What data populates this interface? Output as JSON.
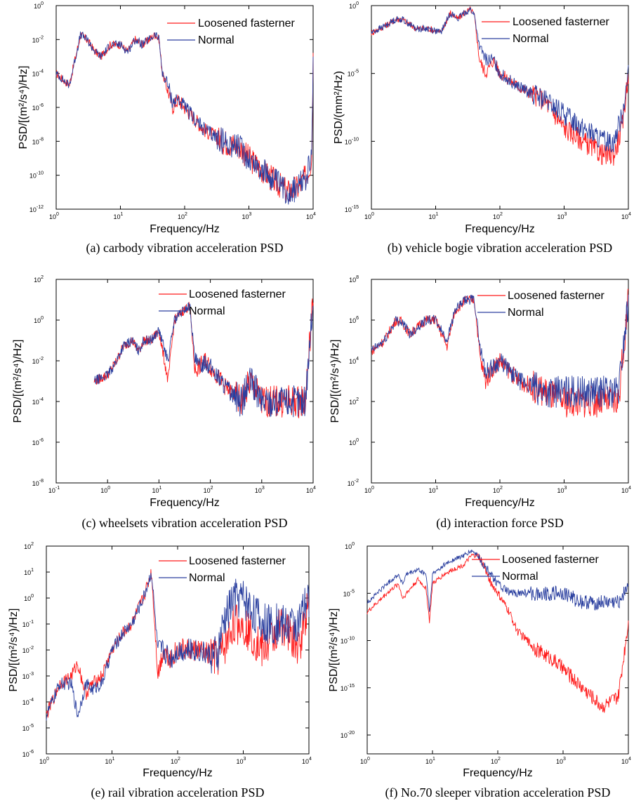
{
  "colors": {
    "loosened": "#ff1a1a",
    "normal": "#2a3f9f",
    "axis": "#000000"
  },
  "chart_data": [
    {
      "type": "line",
      "panel": "a",
      "log_x": true,
      "log_y": true,
      "caption": "(a) carbody vibration acceleration PSD",
      "xlabel": "Frequency/Hz",
      "ylabel": "PSD/[(m²/s⁴)/Hz]",
      "xlim": [
        1,
        10000
      ],
      "ylim": [
        1e-12,
        1
      ],
      "xticks": [
        {
          "v": 1,
          "m": "0"
        },
        {
          "v": 10,
          "m": "1"
        },
        {
          "v": 100,
          "m": "2"
        },
        {
          "v": 1000,
          "m": "3"
        },
        {
          "v": 10000,
          "m": "4"
        }
      ],
      "yticks": [
        {
          "v": 1e-12,
          "m": "-12"
        },
        {
          "v": 1e-10,
          "m": "-10"
        },
        {
          "v": 1e-08,
          "m": "-8"
        },
        {
          "v": 1e-06,
          "m": "-6"
        },
        {
          "v": 0.0001,
          "m": "-4"
        },
        {
          "v": 0.01,
          "m": "-2"
        },
        {
          "v": 1,
          "m": "0"
        }
      ],
      "legend": "top-right",
      "series": [
        {
          "name": "Loosened fasterner",
          "color": "#ff1a1a",
          "x": [
            1,
            1.6,
            2.4,
            3,
            4,
            5,
            7,
            10,
            13,
            17,
            22,
            28,
            35,
            40,
            45,
            55,
            65,
            80,
            100,
            200,
            400,
            700,
            1000,
            2000,
            4000,
            6000,
            8000,
            9500,
            10000
          ],
          "y": [
            0.0001,
            2e-05,
            0.02,
            0.01,
            0.002,
            0.001,
            0.005,
            0.005,
            0.002,
            0.01,
            0.005,
            0.01,
            0.02,
            0.01,
            0.0001,
            1e-05,
            1e-06,
            3e-06,
            1e-06,
            5e-08,
            1e-08,
            5e-09,
            1e-09,
            1e-10,
            1e-11,
            2e-11,
            1e-10,
            1e-09,
            0.001
          ]
        },
        {
          "name": "Normal",
          "color": "#2a3f9f",
          "x": [
            1,
            1.6,
            2.4,
            3,
            4,
            5,
            7,
            10,
            13,
            17,
            22,
            28,
            35,
            40,
            45,
            55,
            65,
            80,
            100,
            200,
            400,
            700,
            1000,
            2000,
            4000,
            6000,
            8000,
            9500,
            10000
          ],
          "y": [
            0.0001,
            2e-05,
            0.02,
            0.01,
            0.002,
            0.001,
            0.005,
            0.005,
            0.002,
            0.01,
            0.005,
            0.01,
            0.02,
            0.01,
            0.0001,
            2e-05,
            2e-06,
            3e-06,
            1e-06,
            5e-08,
            1e-08,
            5e-09,
            1e-09,
            1e-10,
            1e-11,
            2e-11,
            1e-10,
            1e-09,
            0.001
          ]
        }
      ]
    },
    {
      "type": "line",
      "panel": "b",
      "log_x": true,
      "log_y": true,
      "caption": "(b) vehicle bogie vibration acceleration PSD",
      "xlabel": "Frequency/Hz",
      "ylabel": "PSD/(mm²/Hz)",
      "xlim": [
        1,
        10000
      ],
      "ylim": [
        1e-15,
        1
      ],
      "xticks": [
        {
          "v": 1,
          "m": "0"
        },
        {
          "v": 10,
          "m": "1"
        },
        {
          "v": 100,
          "m": "2"
        },
        {
          "v": 1000,
          "m": "3"
        },
        {
          "v": 10000,
          "m": "4"
        }
      ],
      "yticks": [
        {
          "v": 1e-15,
          "m": "-15"
        },
        {
          "v": 1e-10,
          "m": "-10"
        },
        {
          "v": 1e-05,
          "m": "-5"
        },
        {
          "v": 1,
          "m": "0"
        }
      ],
      "legend": "top-right",
      "series": [
        {
          "name": "Loosened fasterner",
          "color": "#ff1a1a",
          "x": [
            1,
            1.6,
            2.4,
            3,
            5,
            8,
            12,
            17,
            22,
            28,
            35,
            40,
            48,
            60,
            80,
            100,
            200,
            500,
            1000,
            2000,
            4000,
            6000,
            8000,
            10000
          ],
          "y": [
            0.01,
            0.03,
            0.1,
            0.1,
            0.02,
            0.02,
            0.01,
            0.3,
            0.1,
            0.3,
            0.5,
            0.2,
            0.0001,
            1e-05,
            0.0001,
            1e-05,
            1e-06,
            1e-07,
            1e-09,
            1e-10,
            1e-11,
            1e-11,
            1e-09,
            1e-05
          ]
        },
        {
          "name": "Normal",
          "color": "#2a3f9f",
          "x": [
            1,
            1.6,
            2.4,
            3,
            5,
            8,
            12,
            17,
            22,
            28,
            35,
            40,
            48,
            60,
            80,
            100,
            200,
            500,
            1000,
            2000,
            4000,
            6000,
            8000,
            10000
          ],
          "y": [
            0.01,
            0.03,
            0.1,
            0.1,
            0.02,
            0.02,
            0.01,
            0.3,
            0.1,
            0.3,
            0.5,
            0.2,
            0.001,
            0.0001,
            0.0001,
            1e-05,
            1e-06,
            1e-07,
            1e-08,
            1e-09,
            1e-10,
            1e-10,
            1e-08,
            1e-05
          ]
        }
      ]
    },
    {
      "type": "line",
      "panel": "c",
      "log_x": true,
      "log_y": true,
      "caption": "(c) wheelsets vibration acceleration PSD",
      "xlabel": "Frequency/Hz",
      "ylabel": "PSD/[(m²/s⁴)/Hz]",
      "xlim": [
        0.1,
        10000
      ],
      "ylim": [
        1e-08,
        100
      ],
      "xticks": [
        {
          "v": 0.1,
          "m": "-1"
        },
        {
          "v": 1,
          "m": "0"
        },
        {
          "v": 10,
          "m": "1"
        },
        {
          "v": 100,
          "m": "2"
        },
        {
          "v": 1000,
          "m": "3"
        },
        {
          "v": 10000,
          "m": "4"
        }
      ],
      "yticks": [
        {
          "v": 1e-08,
          "m": "-8"
        },
        {
          "v": 1e-06,
          "m": "-6"
        },
        {
          "v": 0.0001,
          "m": "-4"
        },
        {
          "v": 0.01,
          "m": "-2"
        },
        {
          "v": 1,
          "m": "0"
        },
        {
          "v": 100,
          "m": "2"
        }
      ],
      "legend": "top-right",
      "series": [
        {
          "name": "Loosened fasterner",
          "color": "#ff1a1a",
          "x": [
            0.55,
            1,
            1.5,
            2,
            3,
            4,
            5,
            7,
            10,
            15,
            20,
            30,
            40,
            50,
            60,
            80,
            100,
            200,
            400,
            600,
            1000,
            2000,
            4000,
            7000,
            10000
          ],
          "y": [
            0.001,
            0.002,
            0.01,
            0.05,
            0.1,
            0.03,
            0.1,
            0.1,
            0.3,
            0.001,
            1,
            3,
            5,
            0.003,
            0.005,
            0.01,
            0.005,
            0.0005,
            0.0001,
            0.001,
            0.0001,
            0.0001,
            0.0001,
            0.0001,
            10
          ]
        },
        {
          "name": "Normal",
          "color": "#2a3f9f",
          "x": [
            0.55,
            1,
            1.5,
            2,
            3,
            4,
            5,
            7,
            10,
            15,
            20,
            30,
            40,
            50,
            60,
            80,
            100,
            200,
            400,
            600,
            1000,
            2000,
            4000,
            7000,
            10000
          ],
          "y": [
            0.001,
            0.002,
            0.01,
            0.05,
            0.1,
            0.03,
            0.1,
            0.1,
            0.3,
            0.01,
            1,
            3,
            5,
            0.01,
            0.005,
            0.01,
            0.005,
            0.0005,
            0.0001,
            0.001,
            0.0001,
            0.0001,
            0.0001,
            0.0001,
            10
          ]
        }
      ]
    },
    {
      "type": "line",
      "panel": "d",
      "log_x": true,
      "log_y": true,
      "caption": "(d) interaction force PSD",
      "xlabel": "Frequency/Hz",
      "ylabel": "PSD/[(m²/s⁴)/Hz]",
      "xlim": [
        1,
        10000
      ],
      "ylim": [
        0.01,
        100000000.0
      ],
      "xticks": [
        {
          "v": 1,
          "m": "0"
        },
        {
          "v": 10,
          "m": "1"
        },
        {
          "v": 100,
          "m": "2"
        },
        {
          "v": 1000,
          "m": "3"
        },
        {
          "v": 10000,
          "m": "4"
        }
      ],
      "yticks": [
        {
          "v": 0.01,
          "m": "-2"
        },
        {
          "v": 1,
          "m": "0"
        },
        {
          "v": 100,
          "m": "2"
        },
        {
          "v": 10000,
          "m": "4"
        },
        {
          "v": 1000000.0,
          "m": "6"
        },
        {
          "v": 100000000.0,
          "m": "8"
        }
      ],
      "legend": "top-right",
      "series": [
        {
          "name": "Loosened fasterner",
          "color": "#ff1a1a",
          "x": [
            1,
            1.6,
            2.4,
            3,
            4,
            5,
            7,
            10,
            15,
            20,
            30,
            40,
            50,
            60,
            80,
            100,
            200,
            500,
            1000,
            2000,
            4000,
            7000,
            10000
          ],
          "y": [
            30000.0,
            100000.0,
            1000000.0,
            800000.0,
            200000.0,
            400000.0,
            1000000.0,
            1000000.0,
            50000.0,
            3000000.0,
            10000000.0,
            10000000.0,
            10000.0,
            1000.0,
            5000.0,
            10000.0,
            1000.0,
            300.0,
            100.0,
            100.0,
            100.0,
            100.0,
            10000000.0
          ]
        },
        {
          "name": "Normal",
          "color": "#2a3f9f",
          "x": [
            1,
            1.6,
            2.4,
            3,
            4,
            5,
            7,
            10,
            15,
            20,
            30,
            40,
            50,
            60,
            80,
            100,
            200,
            500,
            1000,
            2000,
            4000,
            7000,
            10000
          ],
          "y": [
            30000.0,
            100000.0,
            1000000.0,
            800000.0,
            200000.0,
            400000.0,
            1000000.0,
            1000000.0,
            100000.0,
            3000000.0,
            10000000.0,
            10000000.0,
            30000.0,
            3000.0,
            5000.0,
            10000.0,
            1000.0,
            300.0,
            300.0,
            300.0,
            300.0,
            300.0,
            10000000.0
          ]
        }
      ]
    },
    {
      "type": "line",
      "panel": "e",
      "log_x": true,
      "log_y": true,
      "caption": "(e) rail vibration acceleration PSD",
      "xlabel": "Frequency/Hz",
      "ylabel": "PSD/[(m²/s⁴)/Hz]",
      "xlim": [
        1,
        10000
      ],
      "ylim": [
        1e-06,
        100
      ],
      "xticks": [
        {
          "v": 1,
          "m": "0"
        },
        {
          "v": 10,
          "m": "1"
        },
        {
          "v": 100,
          "m": "2"
        },
        {
          "v": 1000,
          "m": "3"
        },
        {
          "v": 10000,
          "m": "4"
        }
      ],
      "yticks": [
        {
          "v": 1e-06,
          "m": "-6"
        },
        {
          "v": 1e-05,
          "m": "-5"
        },
        {
          "v": 0.0001,
          "m": "-4"
        },
        {
          "v": 0.001,
          "m": "-3"
        },
        {
          "v": 0.01,
          "m": "-2"
        },
        {
          "v": 0.1,
          "m": "-1"
        },
        {
          "v": 1,
          "m": "0"
        },
        {
          "v": 10,
          "m": "1"
        },
        {
          "v": 100,
          "m": "2"
        }
      ],
      "legend": "top-right",
      "series": [
        {
          "name": "Loosened fasterner",
          "color": "#ff1a1a",
          "x": [
            1,
            1.6,
            2.4,
            3,
            4,
            5,
            7,
            10,
            15,
            20,
            30,
            40,
            50,
            60,
            80,
            100,
            200,
            400,
            500,
            700,
            1000,
            2000,
            4000,
            7000,
            10000
          ],
          "y": [
            3e-05,
            0.0005,
            0.001,
            0.003,
            0.0002,
            0.0005,
            0.001,
            0.01,
            0.05,
            0.1,
            1,
            10,
            0.001,
            0.01,
            0.005,
            0.01,
            0.01,
            0.005,
            0.01,
            0.1,
            0.1,
            0.01,
            0.1,
            0.01,
            1
          ]
        },
        {
          "name": "Normal",
          "color": "#2a3f9f",
          "x": [
            1,
            1.6,
            2.4,
            3,
            4,
            5,
            7,
            10,
            15,
            20,
            30,
            40,
            50,
            60,
            80,
            100,
            200,
            400,
            500,
            700,
            1000,
            2000,
            4000,
            7000,
            10000
          ],
          "y": [
            3e-05,
            0.0005,
            0.0005,
            3e-05,
            0.0005,
            0.0003,
            0.0005,
            0.01,
            0.05,
            0.1,
            1,
            10,
            0.01,
            0.01,
            0.005,
            0.01,
            0.01,
            0.005,
            0.1,
            1,
            1,
            0.1,
            0.1,
            0.1,
            1
          ]
        }
      ]
    },
    {
      "type": "line",
      "panel": "f",
      "log_x": true,
      "log_y": true,
      "caption": "(f) No.70 sleeper vibration acceleration PSD",
      "xlabel": "Frequency/Hz",
      "ylabel": "PSD/[(m²/s⁴)/Hz]",
      "xlim": [
        1,
        10000
      ],
      "ylim": [
        1e-22,
        1
      ],
      "xticks": [
        {
          "v": 1,
          "m": "0"
        },
        {
          "v": 10,
          "m": "1"
        },
        {
          "v": 100,
          "m": "2"
        },
        {
          "v": 1000,
          "m": "3"
        },
        {
          "v": 10000,
          "m": "4"
        }
      ],
      "yticks": [
        {
          "v": 1e-20,
          "m": "-20"
        },
        {
          "v": 1e-15,
          "m": "-15"
        },
        {
          "v": 1e-10,
          "m": "-10"
        },
        {
          "v": 1e-05,
          "m": "-5"
        },
        {
          "v": 1,
          "m": "0"
        }
      ],
      "legend": "top-right",
      "series": [
        {
          "name": "Loosened fasterner",
          "color": "#ff1a1a",
          "x": [
            1,
            2,
            3,
            3.5,
            4,
            6,
            8,
            9,
            10,
            15,
            20,
            30,
            40,
            50,
            60,
            80,
            100,
            150,
            200,
            400,
            700,
            1000,
            2000,
            4000,
            7000,
            10000
          ],
          "y": [
            1e-07,
            1e-05,
            0.0001,
            3e-06,
            1e-05,
            0.0003,
            3e-05,
            1e-08,
            0.0001,
            0.001,
            0.003,
            0.01,
            0.1,
            0.1,
            0.01,
            0.0001,
            1e-05,
            1e-07,
            1e-09,
            1e-11,
            1e-12,
            1e-13,
            1e-15,
            1e-17,
            1e-16,
            1e-08
          ]
        },
        {
          "name": "Normal",
          "color": "#2a3f9f",
          "x": [
            1,
            2,
            3,
            3.5,
            4,
            6,
            8,
            9,
            10,
            15,
            20,
            30,
            40,
            50,
            60,
            80,
            100,
            150,
            200,
            400,
            700,
            1000,
            2000,
            4000,
            7000,
            10000
          ],
          "y": [
            1e-06,
            0.0001,
            0.001,
            0.0001,
            0.001,
            0.003,
            0.001,
            1e-07,
            0.001,
            0.01,
            0.03,
            0.1,
            0.3,
            0.1,
            0.01,
            0.001,
            0.0001,
            1e-05,
            1e-05,
            1e-05,
            1e-05,
            1e-05,
            1e-06,
            1e-06,
            1e-06,
            0.0001
          ]
        }
      ]
    }
  ]
}
